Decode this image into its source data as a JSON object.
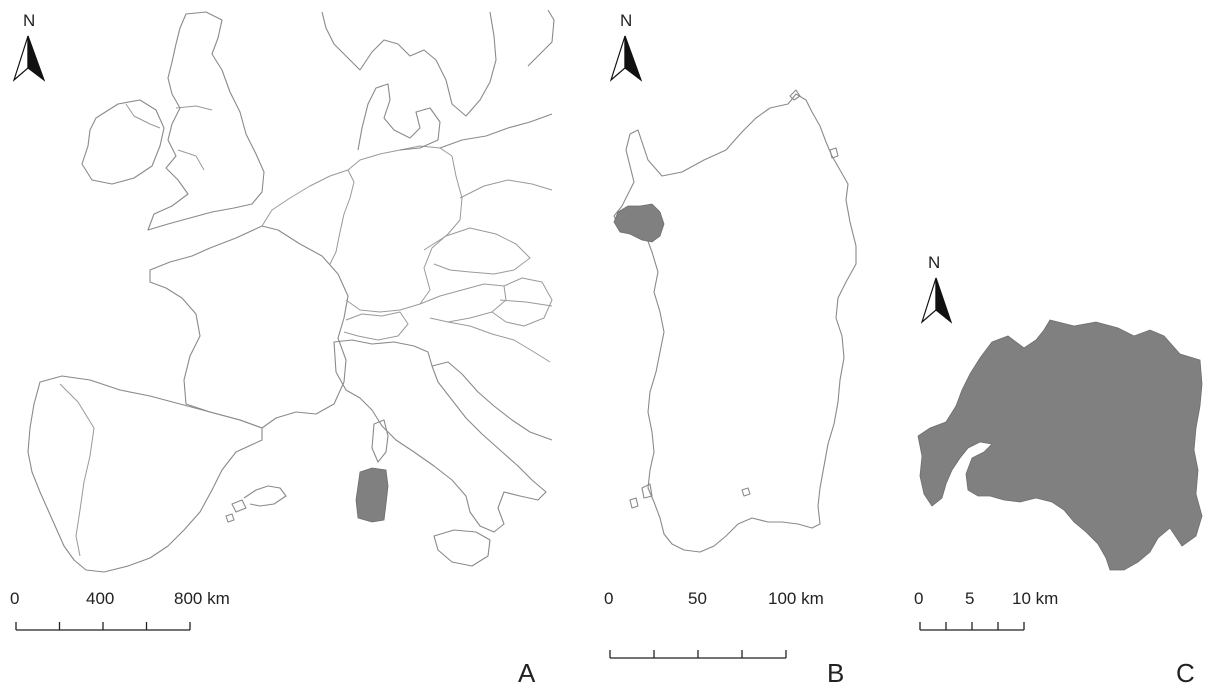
{
  "panels": [
    {
      "id": "A",
      "label": "A",
      "north": "N",
      "scale": {
        "ticks": [
          "0",
          "400",
          "800 km"
        ],
        "max_km": 800,
        "divisions": 4
      }
    },
    {
      "id": "B",
      "label": "B",
      "north": "N",
      "scale": {
        "ticks": [
          "0",
          "50",
          "100 km"
        ],
        "max_km": 100,
        "divisions": 4
      }
    },
    {
      "id": "C",
      "label": "C",
      "north": "N",
      "scale": {
        "ticks": [
          "0",
          "5",
          "10 km"
        ],
        "max_km": 10,
        "divisions": 4
      }
    }
  ],
  "colors": {
    "highlight": "#808080",
    "outline": "#8a8a8a",
    "text": "#222222",
    "background": "#ffffff"
  },
  "icons": [
    "north-arrow-icon"
  ]
}
